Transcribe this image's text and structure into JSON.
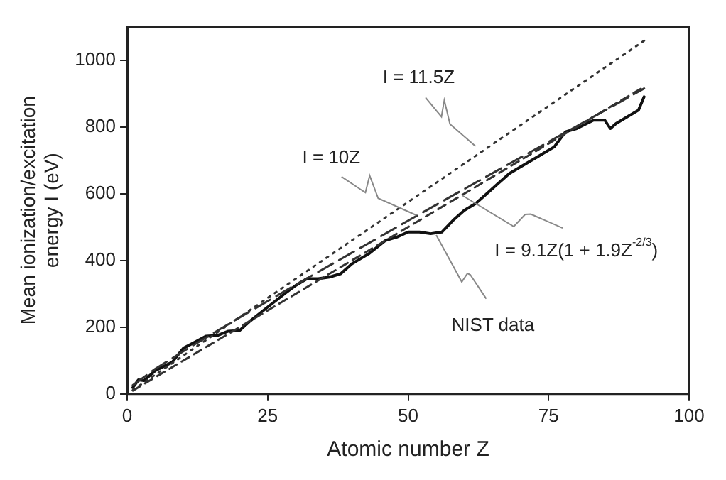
{
  "chart_data": {
    "type": "line",
    "xlabel": "Atomic number Z",
    "ylabel": "Mean ionization/excitation energy I (eV)",
    "xlim": [
      0,
      100
    ],
    "xticks": [
      0,
      25,
      50,
      75,
      100
    ],
    "ylim": [
      0,
      1100
    ],
    "yticks": [
      0,
      200,
      400,
      600,
      800,
      1000
    ],
    "marker": "none",
    "series": [
      {
        "color": "#333333",
        "line_style": "dotted",
        "x": [
          1,
          92
        ],
        "values": [
          11.5,
          1058
        ]
      },
      {
        "color": "#333333",
        "line_style": "dashed",
        "x": [
          1,
          92
        ],
        "values": [
          10,
          920
        ]
      },
      {
        "color": "#333333",
        "line_style": "longdash",
        "x": [
          1,
          5,
          10,
          20,
          30,
          40,
          50,
          60,
          70,
          80,
          92
        ],
        "values": [
          26,
          75,
          128,
          229,
          327,
          423,
          519,
          614,
          708,
          802,
          915
        ]
      },
      {
        "color": "#111111",
        "line_style": "solid",
        "x": [
          1,
          2,
          3,
          5,
          8,
          10,
          12,
          14,
          16,
          18,
          20,
          22,
          25,
          28,
          30,
          32,
          34,
          36,
          38,
          40,
          43,
          46,
          48,
          50,
          52,
          54,
          56,
          58,
          60,
          62,
          64,
          66,
          68,
          70,
          73,
          76,
          78,
          80,
          83,
          85,
          86,
          87,
          89,
          91,
          92
        ],
        "values": [
          19,
          42,
          40,
          70,
          95,
          137,
          155,
          173,
          175,
          188,
          190,
          220,
          260,
          300,
          325,
          345,
          345,
          350,
          360,
          390,
          420,
          460,
          470,
          485,
          485,
          480,
          485,
          520,
          550,
          570,
          600,
          630,
          660,
          680,
          710,
          740,
          785,
          795,
          820,
          820,
          795,
          810,
          830,
          850,
          890
        ]
      }
    ],
    "annotations": [
      {
        "text": "I = 11.5Z",
        "x": 62,
        "y": 742
      },
      {
        "text": "I = 10Z",
        "x": 51.5,
        "y": 535
      },
      {
        "text": "I = 9.1Z(1 + 1.9Z$^{-2/3}$)",
        "x": 59.7,
        "y": 594
      },
      {
        "text": "NIST data",
        "x": 55,
        "y": 476
      }
    ]
  }
}
